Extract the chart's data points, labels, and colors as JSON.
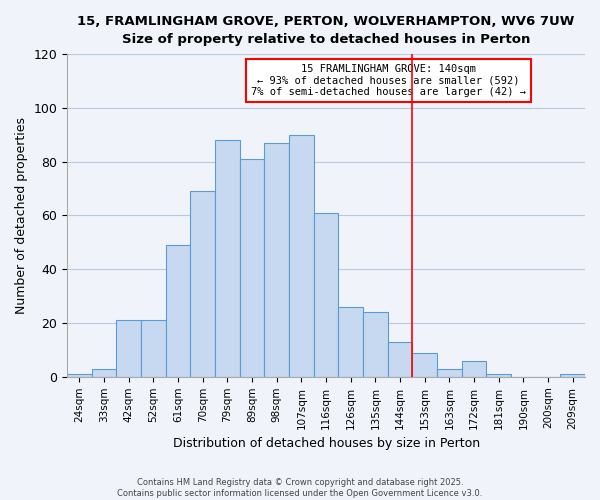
{
  "title": "15, FRAMLINGHAM GROVE, PERTON, WOLVERHAMPTON, WV6 7UW",
  "subtitle": "Size of property relative to detached houses in Perton",
  "xlabel": "Distribution of detached houses by size in Perton",
  "ylabel": "Number of detached properties",
  "bar_labels": [
    "24sqm",
    "33sqm",
    "42sqm",
    "52sqm",
    "61sqm",
    "70sqm",
    "79sqm",
    "89sqm",
    "98sqm",
    "107sqm",
    "116sqm",
    "126sqm",
    "135sqm",
    "144sqm",
    "153sqm",
    "163sqm",
    "172sqm",
    "181sqm",
    "190sqm",
    "200sqm",
    "209sqm"
  ],
  "bar_values": [
    1,
    3,
    21,
    21,
    49,
    69,
    88,
    81,
    87,
    90,
    61,
    26,
    24,
    13,
    9,
    3,
    6,
    1,
    0,
    0,
    1
  ],
  "bar_color": "#c6d9f0",
  "bar_edge_color": "#5b9bd5",
  "vline_x": 13.5,
  "annotation_line1": "15 FRAMLINGHAM GROVE: 140sqm",
  "annotation_line2": "← 93% of detached houses are smaller (592)",
  "annotation_line3": "7% of semi-detached houses are larger (42) →",
  "ylim": [
    0,
    120
  ],
  "yticks": [
    0,
    20,
    40,
    60,
    80,
    100,
    120
  ],
  "footer1": "Contains HM Land Registry data © Crown copyright and database right 2025.",
  "footer2": "Contains public sector information licensed under the Open Government Licence v3.0.",
  "bg_color": "#f0f4fa",
  "grid_color": "#b8c8de"
}
